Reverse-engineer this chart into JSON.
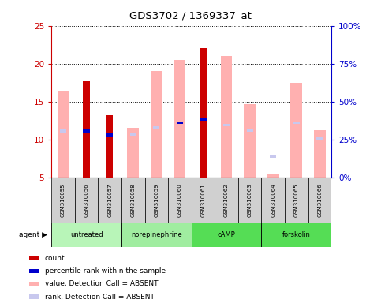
{
  "title": "GDS3702 / 1369337_at",
  "samples": [
    "GSM310055",
    "GSM310056",
    "GSM310057",
    "GSM310058",
    "GSM310059",
    "GSM310060",
    "GSM310061",
    "GSM310062",
    "GSM310063",
    "GSM310064",
    "GSM310065",
    "GSM310066"
  ],
  "agent_configs": [
    {
      "label": "untreated",
      "indices": [
        0,
        1,
        2
      ],
      "color": "#b8f5b8"
    },
    {
      "label": "norepinephrine",
      "indices": [
        3,
        4,
        5
      ],
      "color": "#a0eda0"
    },
    {
      "label": "cAMP",
      "indices": [
        6,
        7,
        8
      ],
      "color": "#55dd55"
    },
    {
      "label": "forskolin",
      "indices": [
        9,
        10,
        11
      ],
      "color": "#55dd55"
    }
  ],
  "count_values": [
    null,
    17.7,
    13.2,
    null,
    null,
    null,
    22.0,
    null,
    null,
    null,
    null,
    null
  ],
  "percentile_values": [
    null,
    11.1,
    10.6,
    null,
    null,
    12.2,
    12.7,
    null,
    null,
    null,
    null,
    null
  ],
  "value_absent": [
    16.4,
    null,
    null,
    11.5,
    19.0,
    20.5,
    null,
    21.0,
    14.7,
    5.5,
    17.5,
    11.2
  ],
  "rank_absent": [
    11.1,
    null,
    null,
    10.7,
    11.5,
    null,
    null,
    11.9,
    11.2,
    7.8,
    12.2,
    10.2
  ],
  "ylim_left": [
    5,
    25
  ],
  "ylim_right": [
    0,
    100
  ],
  "left_tick_color": "#cc0000",
  "right_tick_color": "#0000cc",
  "count_color": "#cc0000",
  "percentile_color": "#0000cc",
  "value_absent_color": "#ffb0b0",
  "rank_absent_color": "#c8c8ee",
  "bar_bottom": 5,
  "sample_box_color": "#d0d0d0",
  "legend_items": [
    {
      "color": "#cc0000",
      "label": "count"
    },
    {
      "color": "#0000cc",
      "label": "percentile rank within the sample"
    },
    {
      "color": "#ffb0b0",
      "label": "value, Detection Call = ABSENT"
    },
    {
      "color": "#c8c8ee",
      "label": "rank, Detection Call = ABSENT"
    }
  ]
}
